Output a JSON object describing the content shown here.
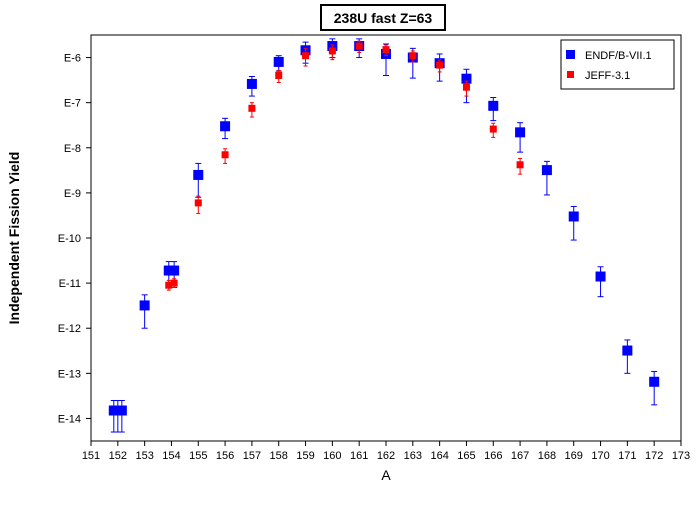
{
  "chart_data": {
    "type": "scatter",
    "title": "238U fast Z=63",
    "xlabel": "A",
    "ylabel": "Independent Fission Yield",
    "y_scale": "log",
    "xlim": [
      151,
      173
    ],
    "ylim_exponent": [
      -14.5,
      -5.5
    ],
    "x_ticks": [
      151,
      152,
      153,
      154,
      155,
      156,
      157,
      158,
      159,
      160,
      161,
      162,
      163,
      164,
      165,
      166,
      167,
      168,
      169,
      170,
      171,
      172,
      173
    ],
    "y_ticks": [
      {
        "exp": -6,
        "label": "E-6"
      },
      {
        "exp": -7,
        "label": "E-7"
      },
      {
        "exp": -8,
        "label": "E-8"
      },
      {
        "exp": -9,
        "label": "E-9"
      },
      {
        "exp": -10,
        "label": "E-10"
      },
      {
        "exp": -11,
        "label": "E-11"
      },
      {
        "exp": -12,
        "label": "E-12"
      },
      {
        "exp": -13,
        "label": "E-13"
      },
      {
        "exp": -14,
        "label": "E-14"
      }
    ],
    "legend_position": "top-right",
    "series": [
      {
        "name": "ENDF/B-VII.1",
        "color": "#0000ff",
        "marker": "square-large",
        "points": [
          {
            "x": 151.85,
            "y": 1.5e-14,
            "lo": 5e-15,
            "hi": 2.5e-14
          },
          {
            "x": 152.0,
            "y": 1.5e-14,
            "lo": 5e-15,
            "hi": 2.5e-14
          },
          {
            "x": 152.15,
            "y": 1.5e-14,
            "lo": 5e-15,
            "hi": 2.5e-14
          },
          {
            "x": 153.0,
            "y": 3.2e-12,
            "lo": 1e-12,
            "hi": 5.5e-12
          },
          {
            "x": 153.9,
            "y": 1.9e-11,
            "lo": 8e-12,
            "hi": 3e-11
          },
          {
            "x": 154.1,
            "y": 1.9e-11,
            "lo": 8e-12,
            "hi": 3e-11
          },
          {
            "x": 155.0,
            "y": 2.5e-09,
            "lo": 8e-10,
            "hi": 4.5e-09
          },
          {
            "x": 156.0,
            "y": 3e-08,
            "lo": 1.6e-08,
            "hi": 4.5e-08
          },
          {
            "x": 157.0,
            "y": 2.6e-07,
            "lo": 1.4e-07,
            "hi": 3.8e-07
          },
          {
            "x": 158.0,
            "y": 8e-07,
            "lo": 5e-07,
            "hi": 1.1e-06
          },
          {
            "x": 159.0,
            "y": 1.45e-06,
            "lo": 7.5e-07,
            "hi": 2.2e-06
          },
          {
            "x": 160.0,
            "y": 1.8e-06,
            "lo": 1e-06,
            "hi": 2.6e-06
          },
          {
            "x": 161.0,
            "y": 1.8e-06,
            "lo": 1e-06,
            "hi": 2.6e-06
          },
          {
            "x": 162.0,
            "y": 1.2e-06,
            "lo": 4e-07,
            "hi": 2e-06
          },
          {
            "x": 163.0,
            "y": 1e-06,
            "lo": 3.5e-07,
            "hi": 1.6e-06
          },
          {
            "x": 164.0,
            "y": 7.5e-07,
            "lo": 3e-07,
            "hi": 1.2e-06
          },
          {
            "x": 165.0,
            "y": 3.4e-07,
            "lo": 1e-07,
            "hi": 5.5e-07
          },
          {
            "x": 166.0,
            "y": 8.5e-08,
            "lo": 4e-08,
            "hi": 1.3e-07
          },
          {
            "x": 167.0,
            "y": 2.2e-08,
            "lo": 8e-09,
            "hi": 3.6e-08
          },
          {
            "x": 168.0,
            "y": 3.2e-09,
            "lo": 9e-10,
            "hi": 5e-09
          },
          {
            "x": 169.0,
            "y": 3e-10,
            "lo": 9e-11,
            "hi": 5e-10
          },
          {
            "x": 170.0,
            "y": 1.4e-11,
            "lo": 5e-12,
            "hi": 2.3e-11
          },
          {
            "x": 171.0,
            "y": 3.2e-13,
            "lo": 1e-13,
            "hi": 5.5e-13
          },
          {
            "x": 172.0,
            "y": 6.5e-14,
            "lo": 2e-14,
            "hi": 1.1e-13
          }
        ]
      },
      {
        "name": "JEFF-3.1",
        "color": "#ff0000",
        "marker": "square-small",
        "points": [
          {
            "x": 153.9,
            "y": 9e-12,
            "lo": 7e-12,
            "hi": 1.15e-11
          },
          {
            "x": 154.1,
            "y": 1e-11,
            "lo": 8e-12,
            "hi": 1.25e-11
          },
          {
            "x": 155.0,
            "y": 6e-10,
            "lo": 3.5e-10,
            "hi": 8.5e-10
          },
          {
            "x": 156.0,
            "y": 7e-09,
            "lo": 4.5e-09,
            "hi": 9.5e-09
          },
          {
            "x": 157.0,
            "y": 7.5e-08,
            "lo": 4.8e-08,
            "hi": 1e-07
          },
          {
            "x": 158.0,
            "y": 4e-07,
            "lo": 2.8e-07,
            "hi": 5.2e-07
          },
          {
            "x": 159.0,
            "y": 1.1e-06,
            "lo": 6.5e-07,
            "hi": 1.6e-06
          },
          {
            "x": 160.0,
            "y": 1.4e-06,
            "lo": 9e-07,
            "hi": 1.9e-06
          },
          {
            "x": 161.0,
            "y": 1.8e-06,
            "lo": 1.3e-06,
            "hi": 2.3e-06
          },
          {
            "x": 162.0,
            "y": 1.5e-06,
            "lo": 1.1e-06,
            "hi": 1.9e-06
          },
          {
            "x": 163.0,
            "y": 1.1e-06,
            "lo": 8e-07,
            "hi": 1.4e-06
          },
          {
            "x": 164.0,
            "y": 6.8e-07,
            "lo": 4.8e-07,
            "hi": 8.8e-07
          },
          {
            "x": 165.0,
            "y": 2.2e-07,
            "lo": 1.4e-07,
            "hi": 3e-07
          },
          {
            "x": 166.0,
            "y": 2.6e-08,
            "lo": 1.7e-08,
            "hi": 3.5e-08
          },
          {
            "x": 167.0,
            "y": 4.2e-09,
            "lo": 2.6e-09,
            "hi": 5.8e-09
          }
        ]
      }
    ]
  }
}
